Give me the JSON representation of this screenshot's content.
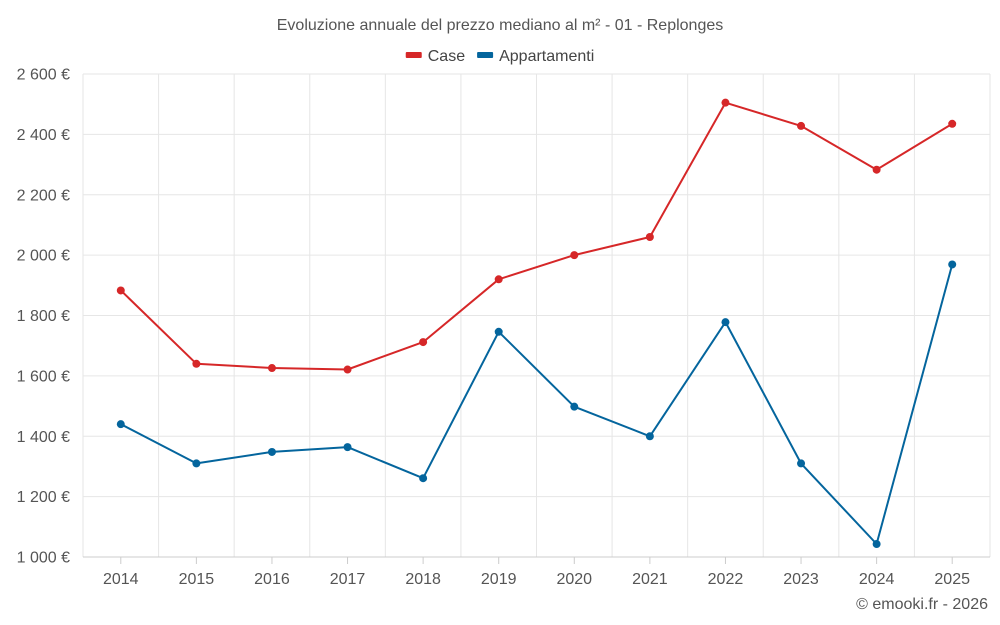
{
  "chart_data": {
    "type": "line",
    "title": "Evoluzione annuale del prezzo mediano al m² - 01 - Replonges",
    "categories": [
      "2014",
      "2015",
      "2016",
      "2017",
      "2018",
      "2019",
      "2020",
      "2021",
      "2022",
      "2023",
      "2024",
      "2025"
    ],
    "series": [
      {
        "name": "Case",
        "color": "#d62728",
        "values": [
          1883,
          1640,
          1626,
          1621,
          1712,
          1920,
          2000,
          2060,
          2505,
          2428,
          2283,
          2435
        ]
      },
      {
        "name": "Appartamenti",
        "color": "#04659d",
        "values": [
          1440,
          1310,
          1348,
          1364,
          1261,
          1746,
          1498,
          1400,
          1778,
          1310,
          1043,
          1969
        ]
      }
    ],
    "xlabel": "",
    "ylabel": "",
    "ylim": [
      1000,
      2600
    ],
    "yticks": [
      1000,
      1200,
      1400,
      1600,
      1800,
      2000,
      2200,
      2400,
      2600
    ],
    "ytick_labels": [
      "1 000 €",
      "1 200 €",
      "1 400 €",
      "1 600 €",
      "1 800 €",
      "2 000 €",
      "2 200 €",
      "2 400 €",
      "2 600 €"
    ],
    "grid": true,
    "legend_position": "top-center"
  },
  "credit": "© emooki.fr - 2026"
}
